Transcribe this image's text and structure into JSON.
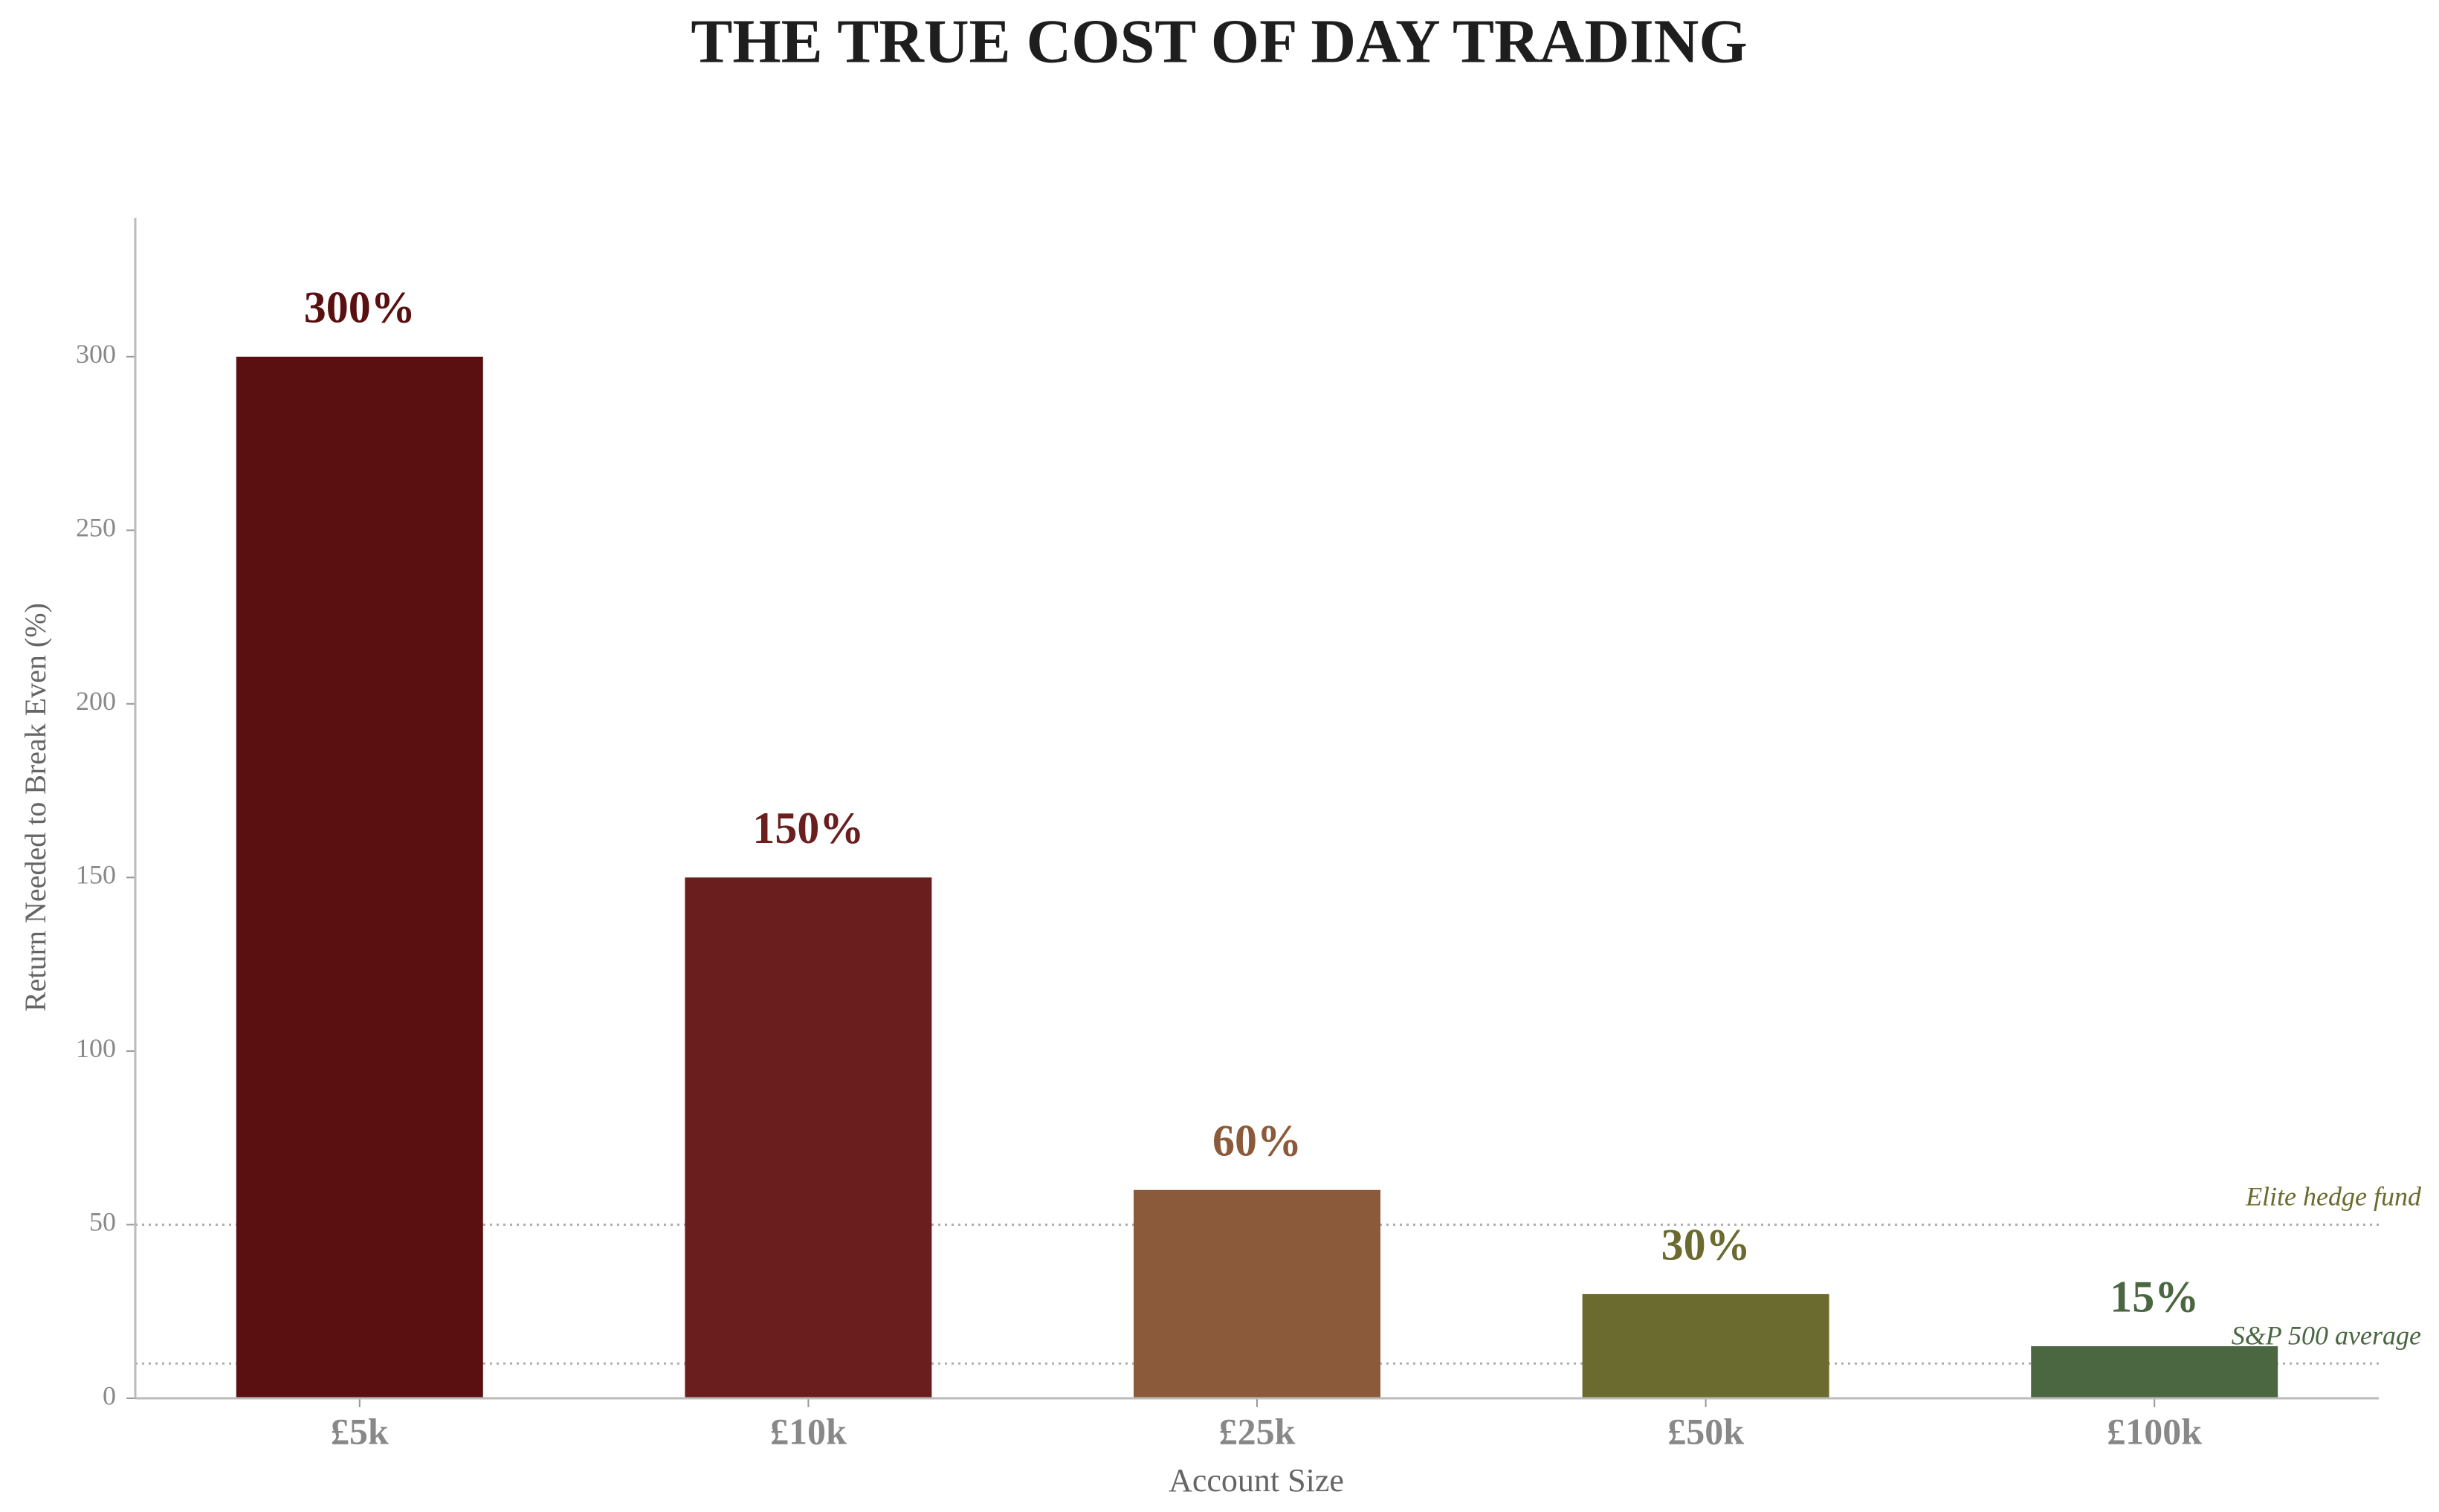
{
  "chart_data": {
    "type": "bar",
    "title": "THE TRUE COST OF DAY TRADING",
    "x_label": "Account Size",
    "y_label": "Return Needed to Break Even (%)",
    "categories": [
      "£5k",
      "£10k",
      "£25k",
      "£50k",
      "£100k"
    ],
    "values": [
      300,
      150,
      60,
      30,
      15
    ],
    "value_labels": [
      "300%",
      "150%",
      "60%",
      "30%",
      "15%"
    ],
    "colors": [
      "#5a1010",
      "#6b1e1e",
      "#8b5a3a",
      "#6b6b2f",
      "#4a6741"
    ],
    "ylim": [
      0,
      340
    ],
    "yticks": [
      0,
      50,
      100,
      150,
      200,
      250,
      300
    ],
    "reference_lines": [
      {
        "value": 50,
        "label": "Elite hedge fund",
        "color": "#6b6b2f"
      },
      {
        "value": 10,
        "label": "S&P 500 average",
        "color": "#4a6741"
      }
    ]
  }
}
